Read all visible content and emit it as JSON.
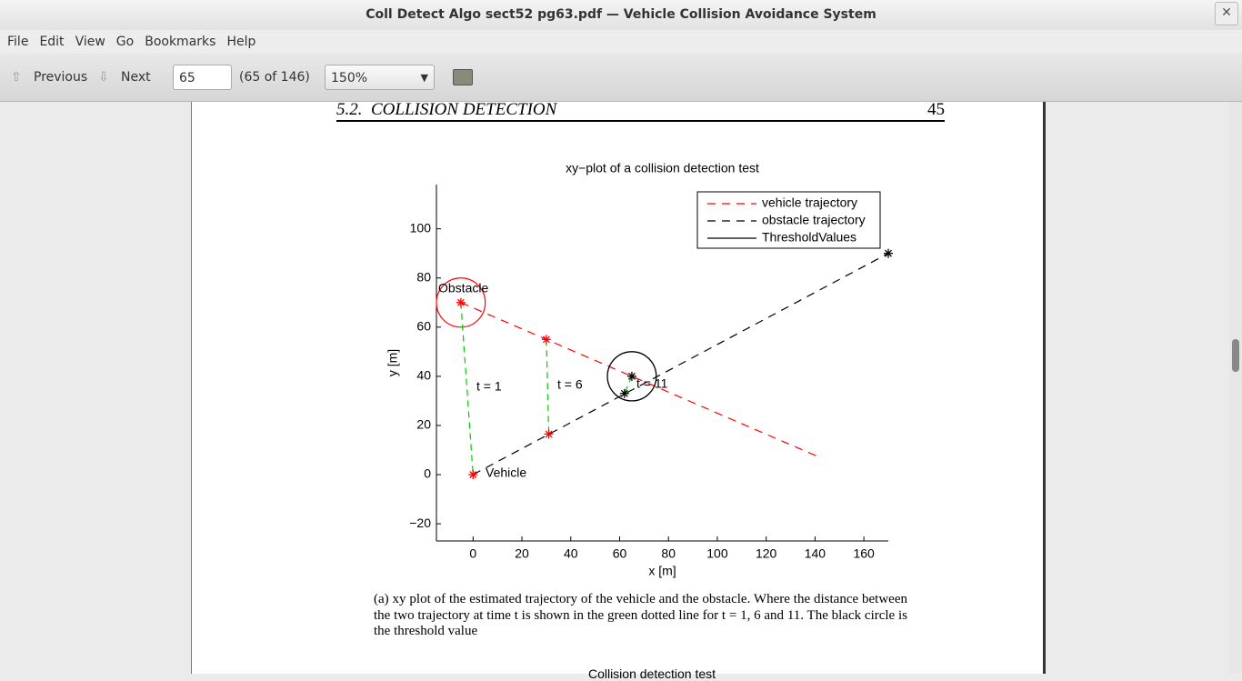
{
  "window": {
    "title": "Coll Detect Algo sect52 pg63.pdf — Vehicle Collision Avoidance System"
  },
  "menu": [
    "File",
    "Edit",
    "View",
    "Go",
    "Bookmarks",
    "Help"
  ],
  "toolbar": {
    "previous": "Previous",
    "next": "Next",
    "page_input": "65",
    "page_count": "(65 of 146)",
    "zoom": "150%"
  },
  "document": {
    "header_section": "5.2.",
    "header_title": "COLLISION DETECTION",
    "page_number": "45",
    "caption": "(a) xy plot of the estimated trajectory of the vehicle and the obstacle.  Where the distance between the two trajectory at time t is shown in the green dotted line for t = 1, 6 and 11.  The black circle is the threshold value",
    "next_title": "Collision detection test"
  },
  "chart_data": {
    "type": "line",
    "title": "xy−plot of a collision detection test",
    "xlabel": "x [m]",
    "ylabel": "y [m]",
    "xlim": [
      -15,
      170
    ],
    "ylim": [
      -27,
      118
    ],
    "xticks": [
      0,
      20,
      40,
      60,
      80,
      100,
      120,
      140,
      160
    ],
    "yticks": [
      {
        "value": -20,
        "label": "−20"
      },
      0,
      20,
      40,
      60,
      80,
      100
    ],
    "legend": "upper right",
    "series": [
      {
        "name": "vehicle trajectory",
        "color": "#ff0000",
        "dash": "dashed",
        "x": [
          -5,
          142
        ],
        "y": [
          70,
          7
        ]
      },
      {
        "name": "obstacle trajectory",
        "color": "#000000",
        "dash": "dashed",
        "x": [
          0,
          170
        ],
        "y": [
          0,
          90
        ]
      },
      {
        "name": "ThresholdValues",
        "color": "#000000",
        "dash": "solid",
        "x": [
          65
        ],
        "y": [
          40
        ],
        "r": [
          10
        ]
      }
    ],
    "circles": [
      {
        "x": -5,
        "y": 70,
        "r": 10,
        "color": "#ff0000"
      }
    ],
    "markers": [
      {
        "color": "#ff0000",
        "x": [
          -5,
          30,
          0,
          31
        ],
        "y": [
          70,
          55,
          0,
          16.5
        ]
      },
      {
        "color": "#000000",
        "x": [
          170,
          65,
          62
        ],
        "y": [
          90,
          40,
          33
        ]
      }
    ],
    "distance_lines": {
      "color": "#00cc00",
      "segments": [
        {
          "x": [
            -5,
            0
          ],
          "y": [
            70,
            0
          ]
        },
        {
          "x": [
            30,
            31
          ],
          "y": [
            55,
            16.5
          ]
        },
        {
          "x": [
            65,
            62
          ],
          "y": [
            40,
            33
          ]
        }
      ]
    },
    "annotations": [
      "Obstacle",
      "Vehicle",
      "t = 1",
      "t = 6",
      "t = 11"
    ]
  }
}
